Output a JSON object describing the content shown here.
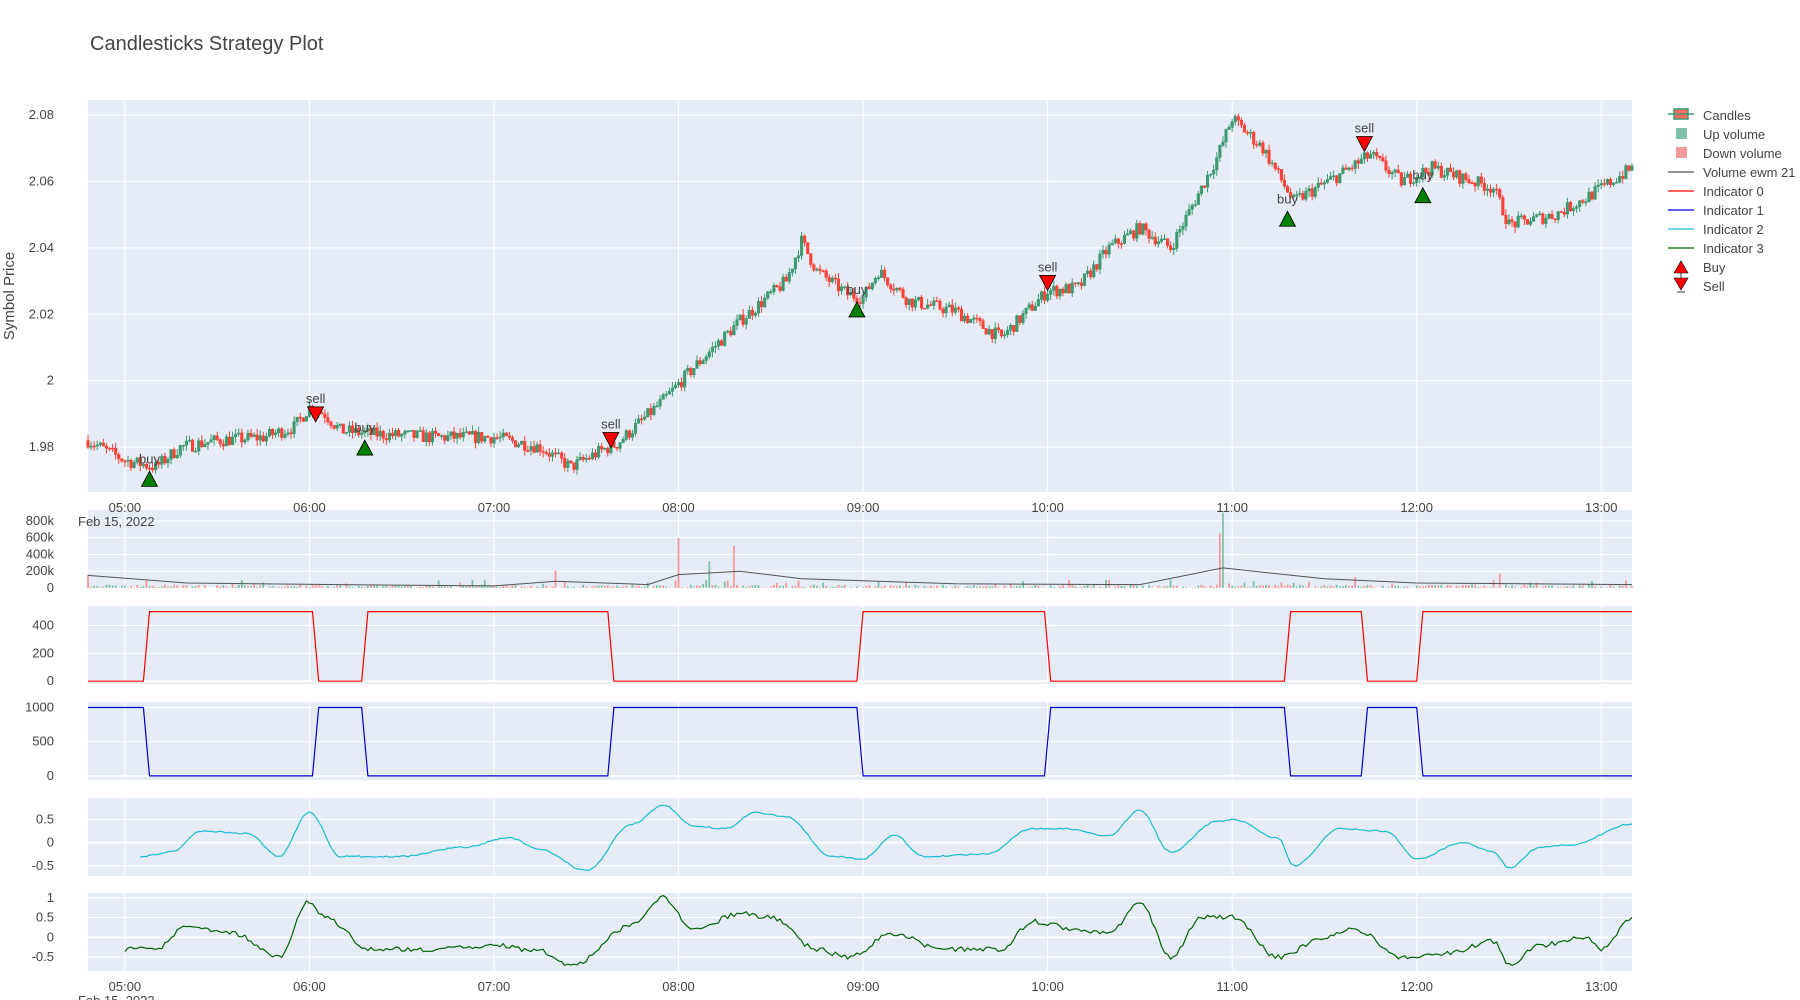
{
  "title": "Candlesticks Strategy Plot",
  "chart_data": {
    "type": "candlestick",
    "x_axis": {
      "type": "time",
      "date_label": "Feb 15, 2022",
      "range": [
        "04:48",
        "13:10"
      ],
      "tick_labels": [
        "05:00",
        "06:00",
        "07:00",
        "08:00",
        "09:00",
        "10:00",
        "11:00",
        "12:00",
        "13:00"
      ]
    },
    "price_panel": {
      "ylabel": "Symbol Price",
      "ylim": [
        1.9665,
        2.0845
      ],
      "tick_labels": [
        "1.98",
        "2",
        "2.02",
        "2.04",
        "2.06",
        "2.08"
      ],
      "tick_values": [
        1.98,
        2.0,
        2.02,
        2.04,
        2.06,
        2.08
      ],
      "colors": {
        "up": "#3d9970",
        "down": "#ff4136"
      },
      "path": [
        [
          "04:48",
          1.982
        ],
        [
          "05:00",
          1.976
        ],
        [
          "05:10",
          1.974
        ],
        [
          "05:18",
          1.98
        ],
        [
          "05:30",
          1.982
        ],
        [
          "05:45",
          1.983
        ],
        [
          "05:55",
          1.986
        ],
        [
          "06:00",
          1.992
        ],
        [
          "06:05",
          1.99
        ],
        [
          "06:10",
          1.985
        ],
        [
          "06:20",
          1.984
        ],
        [
          "06:40",
          1.983
        ],
        [
          "07:00",
          1.983
        ],
        [
          "07:15",
          1.98
        ],
        [
          "07:25",
          1.974
        ],
        [
          "07:35",
          1.979
        ],
        [
          "07:40",
          1.981
        ],
        [
          "07:55",
          1.994
        ],
        [
          "08:05",
          2.004
        ],
        [
          "08:20",
          2.018
        ],
        [
          "08:35",
          2.03
        ],
        [
          "08:40",
          2.042
        ],
        [
          "08:45",
          2.033
        ],
        [
          "08:55",
          2.026
        ],
        [
          "09:00",
          2.025
        ],
        [
          "09:05",
          2.033
        ],
        [
          "09:15",
          2.024
        ],
        [
          "09:30",
          2.021
        ],
        [
          "09:45",
          2.013
        ],
        [
          "10:00",
          2.027
        ],
        [
          "10:10",
          2.028
        ],
        [
          "10:20",
          2.04
        ],
        [
          "10:30",
          2.046
        ],
        [
          "10:40",
          2.04
        ],
        [
          "10:55",
          2.067
        ],
        [
          "11:00",
          2.079
        ],
        [
          "11:10",
          2.07
        ],
        [
          "11:15",
          2.062
        ],
        [
          "11:20",
          2.054
        ],
        [
          "11:35",
          2.062
        ],
        [
          "11:45",
          2.068
        ],
        [
          "11:55",
          2.06
        ],
        [
          "12:05",
          2.064
        ],
        [
          "12:15",
          2.061
        ],
        [
          "12:25",
          2.058
        ],
        [
          "12:30",
          2.047
        ],
        [
          "12:45",
          2.05
        ],
        [
          "12:55",
          2.055
        ],
        [
          "13:10",
          2.064
        ]
      ],
      "buy_signals": [
        {
          "x": "05:08",
          "y": 1.9703,
          "label": "buy"
        },
        {
          "x": "06:18",
          "y": 1.9797,
          "label": "buy"
        },
        {
          "x": "08:58",
          "y": 2.0213,
          "label": "buy"
        },
        {
          "x": "11:18",
          "y": 2.0486,
          "label": "buy"
        },
        {
          "x": "12:02",
          "y": 2.0557,
          "label": "buy"
        }
      ],
      "sell_signals": [
        {
          "x": "06:02",
          "y": 1.99,
          "label": "sell"
        },
        {
          "x": "07:38",
          "y": 1.9823,
          "label": "sell"
        },
        {
          "x": "10:00",
          "y": 2.0296,
          "label": "sell"
        },
        {
          "x": "11:43",
          "y": 2.0714,
          "label": "sell"
        }
      ]
    },
    "volume_panel": {
      "ylim": [
        0,
        930000
      ],
      "tick_labels": [
        "0",
        "200k",
        "400k",
        "600k",
        "800k"
      ],
      "tick_values": [
        0,
        200000,
        400000,
        600000,
        800000
      ],
      "spikes": [
        [
          "04:48",
          160000
        ],
        [
          "07:20",
          210000
        ],
        [
          "08:00",
          600000
        ],
        [
          "08:18",
          500000
        ],
        [
          "08:10",
          320000
        ],
        [
          "10:57",
          900000
        ],
        [
          "10:56",
          650000
        ],
        [
          "11:40",
          130000
        ],
        [
          "12:27",
          170000
        ]
      ],
      "ewm_path": [
        [
          "04:48",
          150000
        ],
        [
          "05:20",
          60000
        ],
        [
          "06:10",
          40000
        ],
        [
          "07:00",
          25000
        ],
        [
          "07:20",
          80000
        ],
        [
          "07:50",
          40000
        ],
        [
          "08:00",
          160000
        ],
        [
          "08:20",
          200000
        ],
        [
          "08:40",
          110000
        ],
        [
          "09:30",
          50000
        ],
        [
          "10:30",
          40000
        ],
        [
          "10:57",
          240000
        ],
        [
          "11:30",
          110000
        ],
        [
          "12:00",
          60000
        ],
        [
          "13:10",
          40000
        ]
      ]
    },
    "indicators": [
      {
        "name": "Indicator 0",
        "color": "#ff0000",
        "ylim": [
          -20,
          540
        ],
        "tick_labels": [
          "0",
          "200",
          "400"
        ],
        "tick_values": [
          0,
          200,
          400
        ],
        "step": [
          [
            "04:48",
            0
          ],
          [
            "05:06",
            0
          ],
          [
            "05:08",
            500
          ],
          [
            "06:01",
            500
          ],
          [
            "06:03",
            0
          ],
          [
            "06:17",
            0
          ],
          [
            "06:19",
            500
          ],
          [
            "07:37",
            500
          ],
          [
            "07:39",
            0
          ],
          [
            "08:58",
            0
          ],
          [
            "09:00",
            500
          ],
          [
            "09:59",
            500
          ],
          [
            "10:01",
            0
          ],
          [
            "11:17",
            0
          ],
          [
            "11:19",
            500
          ],
          [
            "11:42",
            500
          ],
          [
            "11:44",
            0
          ],
          [
            "12:00",
            0
          ],
          [
            "12:02",
            500
          ],
          [
            "13:10",
            500
          ]
        ]
      },
      {
        "name": "Indicator 1",
        "color": "#0000cc",
        "ylim": [
          -60,
          1080
        ],
        "tick_labels": [
          "0",
          "500",
          "1000"
        ],
        "tick_values": [
          0,
          500,
          1000
        ],
        "step": [
          [
            "04:48",
            1000
          ],
          [
            "05:06",
            1000
          ],
          [
            "05:08",
            0
          ],
          [
            "06:01",
            0
          ],
          [
            "06:03",
            1000
          ],
          [
            "06:17",
            1000
          ],
          [
            "06:19",
            0
          ],
          [
            "07:37",
            0
          ],
          [
            "07:39",
            1000
          ],
          [
            "08:58",
            1000
          ],
          [
            "09:00",
            0
          ],
          [
            "09:59",
            0
          ],
          [
            "10:01",
            1000
          ],
          [
            "11:17",
            1000
          ],
          [
            "11:19",
            0
          ],
          [
            "11:42",
            0
          ],
          [
            "11:44",
            1000
          ],
          [
            "12:00",
            1000
          ],
          [
            "12:02",
            0
          ],
          [
            "13:10",
            0
          ]
        ]
      },
      {
        "name": "Indicator 2",
        "color": "#17becf",
        "ylim": [
          -0.72,
          0.96
        ],
        "tick_labels": [
          "-0.5",
          "0",
          "0.5"
        ],
        "tick_values": [
          -0.5,
          0,
          0.5
        ],
        "path": [
          [
            "05:05",
            -0.3
          ],
          [
            "05:15",
            -0.2
          ],
          [
            "05:25",
            0.25
          ],
          [
            "05:40",
            0.2
          ],
          [
            "05:50",
            -0.3
          ],
          [
            "06:00",
            0.65
          ],
          [
            "06:10",
            -0.3
          ],
          [
            "06:30",
            -0.3
          ],
          [
            "06:50",
            -0.1
          ],
          [
            "07:05",
            0.1
          ],
          [
            "07:15",
            -0.15
          ],
          [
            "07:30",
            -0.6
          ],
          [
            "07:45",
            0.4
          ],
          [
            "07:55",
            0.8
          ],
          [
            "08:05",
            0.35
          ],
          [
            "08:15",
            0.3
          ],
          [
            "08:25",
            0.65
          ],
          [
            "08:35",
            0.55
          ],
          [
            "08:50",
            -0.3
          ],
          [
            "09:00",
            -0.35
          ],
          [
            "09:10",
            0.15
          ],
          [
            "09:20",
            -0.3
          ],
          [
            "09:40",
            -0.25
          ],
          [
            "09:55",
            0.3
          ],
          [
            "10:05",
            0.3
          ],
          [
            "10:20",
            0.15
          ],
          [
            "10:30",
            0.7
          ],
          [
            "10:40",
            -0.2
          ],
          [
            "10:55",
            0.45
          ],
          [
            "11:00",
            0.5
          ],
          [
            "11:15",
            0.1
          ],
          [
            "11:20",
            -0.5
          ],
          [
            "11:35",
            0.3
          ],
          [
            "11:50",
            0.25
          ],
          [
            "12:00",
            -0.35
          ],
          [
            "12:15",
            0.0
          ],
          [
            "12:25",
            -0.2
          ],
          [
            "12:30",
            -0.55
          ],
          [
            "12:40",
            -0.1
          ],
          [
            "12:50",
            -0.05
          ],
          [
            "13:10",
            0.4
          ]
        ]
      },
      {
        "name": "Indicator 3",
        "color": "#006400",
        "ylim": [
          -0.85,
          1.12
        ],
        "tick_labels": [
          "-0.5",
          "0",
          "0.5",
          "1"
        ],
        "tick_values": [
          -0.5,
          0,
          0.5,
          1
        ],
        "path": [
          [
            "05:00",
            -0.3
          ],
          [
            "05:10",
            -0.3
          ],
          [
            "05:20",
            0.3
          ],
          [
            "05:35",
            0.1
          ],
          [
            "05:50",
            -0.5
          ],
          [
            "06:00",
            0.9
          ],
          [
            "06:05",
            0.5
          ],
          [
            "06:20",
            -0.3
          ],
          [
            "06:40",
            -0.3
          ],
          [
            "07:00",
            -0.2
          ],
          [
            "07:15",
            -0.35
          ],
          [
            "07:25",
            -0.7
          ],
          [
            "07:45",
            0.3
          ],
          [
            "07:55",
            1.0
          ],
          [
            "08:05",
            0.2
          ],
          [
            "08:20",
            0.6
          ],
          [
            "08:30",
            0.5
          ],
          [
            "08:45",
            -0.3
          ],
          [
            "08:55",
            -0.5
          ],
          [
            "09:10",
            0.1
          ],
          [
            "09:25",
            -0.3
          ],
          [
            "09:45",
            -0.3
          ],
          [
            "09:55",
            0.4
          ],
          [
            "10:10",
            0.2
          ],
          [
            "10:20",
            0.1
          ],
          [
            "10:30",
            0.9
          ],
          [
            "10:40",
            -0.5
          ],
          [
            "10:50",
            0.5
          ],
          [
            "11:00",
            0.5
          ],
          [
            "11:15",
            -0.5
          ],
          [
            "11:30",
            0.0
          ],
          [
            "11:40",
            0.2
          ],
          [
            "11:55",
            -0.5
          ],
          [
            "12:10",
            -0.4
          ],
          [
            "12:25",
            -0.1
          ],
          [
            "12:30",
            -0.7
          ],
          [
            "12:40",
            -0.2
          ],
          [
            "12:55",
            0.0
          ],
          [
            "13:00",
            -0.3
          ],
          [
            "13:10",
            0.5
          ]
        ]
      }
    ],
    "legend": {
      "placement": "right",
      "items": [
        "Candles",
        "Up volume",
        "Down volume",
        "Volume ewm 21",
        "Indicator 0",
        "Indicator 1",
        "Indicator 2",
        "Indicator 3",
        "Buy",
        "Sell"
      ]
    }
  }
}
